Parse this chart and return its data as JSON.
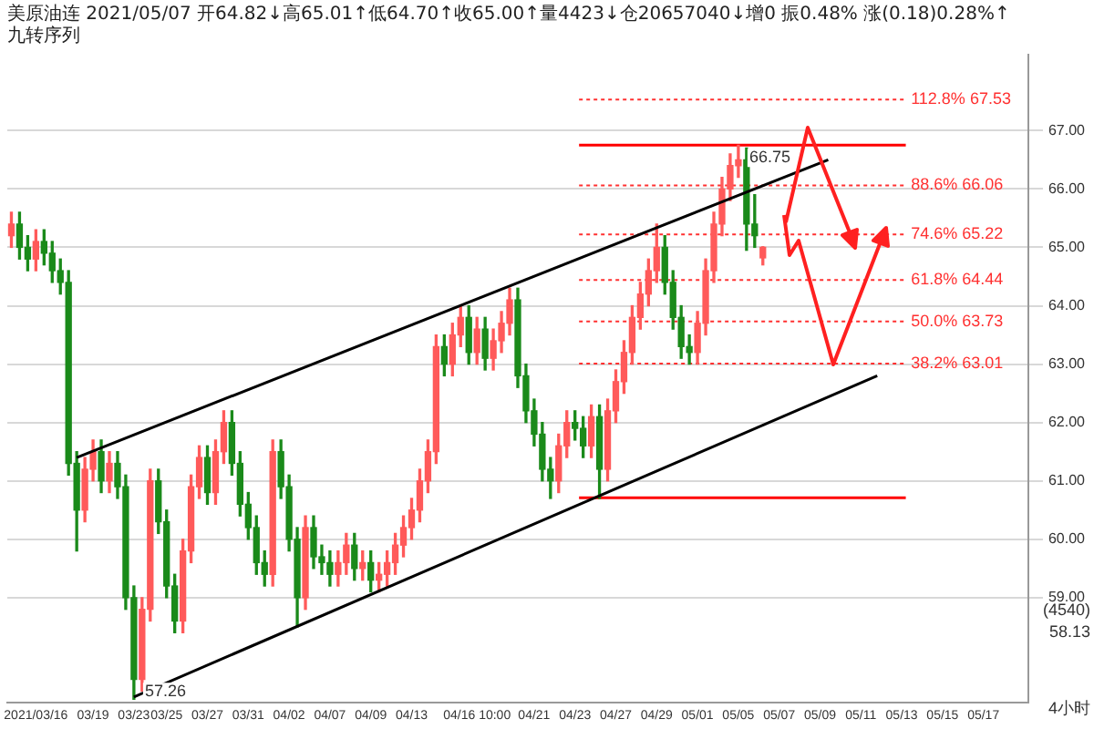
{
  "chart_data": {
    "type": "candlestick",
    "title": "美原油连 2021/05/07 开64.82↓高65.01↑低64.70↑收65.00↑量4423↓仓20657040↓增0 振0.48% 涨(0.18)0.28%↑",
    "subtitle": "九转序列",
    "categories": [
      null,
      null,
      null,
      "2021/03/16",
      null,
      null,
      null,
      null,
      null,
      null,
      "03/19",
      null,
      null,
      null,
      null,
      "03/23",
      null,
      null,
      null,
      "03/25",
      null,
      null,
      null,
      null,
      "03/27",
      null,
      null,
      null,
      null,
      "03/31",
      null,
      null,
      null,
      null,
      "04/02",
      null,
      null,
      null,
      null,
      "04/07",
      null,
      null,
      null,
      null,
      "04/09",
      null,
      null,
      null,
      null,
      "04/13",
      null,
      null,
      null,
      null,
      null,
      null,
      null,
      "04/16 10:00",
      null,
      null,
      null,
      null,
      null,
      null,
      "04/21",
      null,
      null,
      null,
      null,
      "04/23",
      null,
      null,
      null,
      null,
      "04/27",
      null,
      null,
      null,
      null,
      "04/29",
      null,
      null,
      null,
      null,
      "05/01",
      null,
      null,
      null,
      null,
      "05/05",
      null,
      null,
      null,
      null,
      "05/07",
      null,
      null,
      null,
      null,
      "05/09",
      null,
      null,
      null,
      null,
      "05/11",
      null,
      null,
      null,
      null,
      "05/13",
      null,
      null,
      null,
      null,
      "05/15",
      null,
      null,
      null,
      null,
      "05/17",
      null,
      null,
      null,
      null,
      null
    ],
    "ohlc": [
      [
        65.2,
        65.6,
        65.0,
        65.4
      ],
      [
        65.4,
        65.6,
        64.8,
        65.0
      ],
      [
        65.0,
        65.2,
        64.6,
        64.8
      ],
      [
        64.8,
        65.3,
        64.6,
        65.1
      ],
      [
        65.1,
        65.3,
        64.7,
        64.9
      ],
      [
        64.9,
        65.1,
        64.4,
        64.6
      ],
      [
        64.6,
        64.8,
        64.2,
        64.4
      ],
      [
        64.4,
        64.6,
        61.1,
        61.3
      ],
      [
        61.3,
        61.5,
        59.8,
        60.5
      ],
      [
        60.5,
        61.4,
        60.3,
        61.2
      ],
      [
        61.2,
        61.7,
        61.0,
        61.5
      ],
      [
        61.5,
        61.7,
        60.8,
        61.0
      ],
      [
        61.0,
        61.5,
        60.8,
        61.3
      ],
      [
        61.3,
        61.5,
        60.7,
        60.9
      ],
      [
        60.9,
        61.1,
        58.8,
        59.0
      ],
      [
        59.0,
        59.2,
        57.26,
        57.6
      ],
      [
        57.6,
        59.0,
        57.4,
        58.8
      ],
      [
        58.8,
        61.2,
        58.6,
        61.0
      ],
      [
        61.0,
        61.2,
        60.1,
        60.3
      ],
      [
        60.3,
        60.5,
        59.0,
        59.2
      ],
      [
        59.2,
        59.4,
        58.4,
        58.6
      ],
      [
        58.6,
        60.0,
        58.4,
        59.8
      ],
      [
        59.8,
        61.1,
        59.6,
        60.9
      ],
      [
        60.9,
        61.6,
        60.7,
        61.4
      ],
      [
        61.4,
        61.6,
        60.6,
        60.8
      ],
      [
        60.8,
        61.7,
        60.6,
        61.5
      ],
      [
        61.5,
        62.2,
        61.3,
        62.0
      ],
      [
        62.0,
        62.2,
        61.1,
        61.3
      ],
      [
        61.3,
        61.5,
        60.4,
        60.6
      ],
      [
        60.6,
        60.8,
        60.0,
        60.2
      ],
      [
        60.2,
        60.4,
        59.4,
        59.6
      ],
      [
        59.6,
        59.8,
        59.2,
        59.4
      ],
      [
        59.4,
        61.7,
        59.2,
        61.5
      ],
      [
        61.5,
        61.7,
        60.7,
        60.9
      ],
      [
        60.9,
        61.1,
        59.8,
        60.0
      ],
      [
        60.0,
        60.2,
        58.5,
        59.0
      ],
      [
        59.0,
        60.4,
        58.8,
        60.2
      ],
      [
        60.2,
        60.4,
        59.5,
        59.7
      ],
      [
        59.7,
        59.9,
        59.4,
        59.6
      ],
      [
        59.6,
        59.8,
        59.2,
        59.4
      ],
      [
        59.4,
        59.8,
        59.2,
        59.6
      ],
      [
        59.6,
        60.1,
        59.4,
        59.9
      ],
      [
        59.9,
        60.1,
        59.3,
        59.5
      ],
      [
        59.5,
        59.8,
        59.3,
        59.6
      ],
      [
        59.6,
        59.8,
        59.1,
        59.3
      ],
      [
        59.3,
        59.6,
        59.1,
        59.4
      ],
      [
        59.4,
        59.8,
        59.2,
        59.6
      ],
      [
        59.6,
        60.1,
        59.4,
        59.9
      ],
      [
        59.9,
        60.4,
        59.7,
        60.2
      ],
      [
        60.2,
        60.7,
        60.0,
        60.5
      ],
      [
        60.5,
        61.2,
        60.3,
        61.0
      ],
      [
        61.0,
        61.7,
        60.8,
        61.5
      ],
      [
        61.5,
        63.5,
        61.3,
        63.3
      ],
      [
        63.3,
        63.5,
        62.8,
        63.0
      ],
      [
        63.0,
        63.7,
        62.8,
        63.5
      ],
      [
        63.5,
        64.0,
        63.3,
        63.8
      ],
      [
        63.8,
        64.0,
        63.0,
        63.2
      ],
      [
        63.2,
        63.8,
        63.0,
        63.6
      ],
      [
        63.6,
        63.8,
        62.9,
        63.1
      ],
      [
        63.1,
        63.6,
        62.9,
        63.4
      ],
      [
        63.4,
        63.9,
        63.2,
        63.7
      ],
      [
        63.7,
        64.3,
        63.5,
        64.1
      ],
      [
        64.1,
        64.3,
        62.6,
        62.8
      ],
      [
        62.8,
        63.0,
        62.0,
        62.2
      ],
      [
        62.2,
        62.4,
        61.6,
        61.8
      ],
      [
        61.8,
        62.0,
        61.0,
        61.2
      ],
      [
        61.2,
        61.4,
        60.7,
        61.0
      ],
      [
        61.0,
        61.8,
        60.8,
        61.6
      ],
      [
        61.6,
        62.2,
        61.4,
        62.0
      ],
      [
        62.0,
        62.2,
        61.7,
        61.9
      ],
      [
        61.9,
        62.1,
        61.4,
        61.6
      ],
      [
        61.6,
        62.3,
        61.4,
        62.1
      ],
      [
        62.1,
        62.3,
        60.7,
        61.2
      ],
      [
        61.2,
        62.4,
        61.0,
        62.2
      ],
      [
        62.2,
        62.9,
        62.0,
        62.7
      ],
      [
        62.7,
        63.4,
        62.5,
        63.2
      ],
      [
        63.2,
        64.0,
        63.0,
        63.8
      ],
      [
        63.8,
        64.4,
        63.6,
        64.2
      ],
      [
        64.2,
        64.8,
        64.0,
        64.6
      ],
      [
        64.6,
        65.4,
        64.4,
        65.0
      ],
      [
        65.0,
        65.2,
        64.2,
        64.4
      ],
      [
        64.4,
        64.6,
        63.6,
        63.8
      ],
      [
        63.8,
        64.0,
        63.1,
        63.3
      ],
      [
        63.3,
        63.5,
        63.0,
        63.2
      ],
      [
        63.2,
        63.9,
        63.0,
        63.7
      ],
      [
        63.7,
        64.8,
        63.5,
        64.6
      ],
      [
        64.6,
        65.6,
        64.4,
        65.4
      ],
      [
        65.4,
        66.2,
        65.2,
        66.0
      ],
      [
        66.0,
        66.6,
        65.8,
        66.4
      ],
      [
        66.4,
        66.75,
        66.2,
        66.5
      ],
      [
        66.5,
        66.7,
        64.95,
        65.4
      ],
      [
        65.4,
        65.9,
        65.0,
        65.2
      ],
      [
        64.82,
        65.01,
        64.7,
        65.0
      ],
      null,
      null,
      null,
      null,
      null,
      null,
      null,
      null,
      null,
      null,
      null,
      null,
      null,
      null,
      null,
      null,
      null,
      null,
      null,
      null,
      null,
      null,
      null,
      null,
      null,
      null,
      null,
      null,
      null,
      null,
      null,
      null
    ],
    "series": [
      {
        "type": "line",
        "color": "#000000",
        "values": [
          null,
          null,
          null,
          null,
          null,
          null,
          null,
          null,
          61.4,
          null,
          null,
          null,
          null,
          null,
          null,
          null,
          null,
          null,
          null,
          null,
          null,
          null,
          null,
          null,
          null,
          null,
          null,
          null,
          null,
          null,
          null,
          null,
          null,
          null,
          null,
          null,
          null,
          null,
          null,
          null,
          null,
          null,
          null,
          null,
          null,
          null,
          null,
          null,
          null,
          null,
          null,
          null,
          null,
          null,
          null,
          null,
          null,
          null,
          null,
          null,
          null,
          null,
          null,
          null,
          null,
          null,
          null,
          null,
          null,
          null,
          null,
          null,
          null,
          null,
          null,
          null,
          null,
          null,
          null,
          null,
          null,
          null,
          null,
          null,
          null,
          null,
          null,
          null,
          null,
          null,
          null,
          null,
          null,
          null,
          null,
          null,
          null,
          null,
          null,
          null,
          66.5,
          null,
          null,
          null,
          null,
          null,
          null,
          null,
          null,
          null,
          null,
          null,
          null,
          null,
          null,
          null,
          null,
          null,
          null,
          null,
          null,
          null,
          null,
          null,
          null
        ]
      },
      {
        "type": "line",
        "color": "#000000",
        "values": [
          null,
          null,
          null,
          null,
          null,
          null,
          null,
          null,
          null,
          null,
          null,
          null,
          null,
          null,
          null,
          57.3,
          null,
          null,
          null,
          null,
          null,
          null,
          null,
          null,
          null,
          null,
          null,
          null,
          null,
          null,
          null,
          null,
          null,
          null,
          null,
          null,
          null,
          null,
          null,
          null,
          null,
          null,
          null,
          null,
          null,
          null,
          null,
          null,
          null,
          null,
          null,
          null,
          null,
          null,
          null,
          null,
          null,
          null,
          null,
          null,
          null,
          null,
          null,
          null,
          null,
          null,
          null,
          null,
          null,
          null,
          null,
          null,
          null,
          null,
          null,
          null,
          null,
          null,
          null,
          null,
          null,
          null,
          null,
          null,
          null,
          null,
          null,
          null,
          null,
          null,
          null,
          null,
          null,
          null,
          null,
          null,
          null,
          null,
          null,
          null,
          null,
          null,
          null,
          null,
          null,
          null,
          62.8,
          null,
          null,
          null,
          null,
          null,
          null,
          null,
          null,
          null,
          null,
          null,
          null,
          null,
          null,
          null,
          null,
          null,
          null
        ]
      }
    ],
    "ylim": [
      57.2,
      68.3
    ],
    "yticks": [
      {
        "value": 59,
        "label": "59.00"
      },
      {
        "value": 60,
        "label": "60.00"
      },
      {
        "value": 61,
        "label": "61.00"
      },
      {
        "value": 62,
        "label": "62.00"
      },
      {
        "value": 63,
        "label": "63.00"
      },
      {
        "value": 64,
        "label": "64.00"
      },
      {
        "value": 65,
        "label": "65.00"
      },
      {
        "value": 66,
        "label": "66.00"
      },
      {
        "value": 67,
        "label": "67.00"
      }
    ],
    "grid": "y",
    "ref_lines": [
      {
        "axis": "y",
        "value": 67.53,
        "label": "112.8% 67.53",
        "color": "#ff3030",
        "line_style": "dotted"
      },
      {
        "axis": "y",
        "value": 66.75,
        "color": "#ff0000",
        "line_style": "solid"
      },
      {
        "axis": "y",
        "value": 66.06,
        "label": "88.6% 66.06",
        "color": "#ff3030",
        "line_style": "dotted"
      },
      {
        "axis": "y",
        "value": 65.22,
        "label": "74.6% 65.22",
        "color": "#ff3030",
        "line_style": "dotted"
      },
      {
        "axis": "y",
        "value": 64.44,
        "label": "61.8% 64.44",
        "color": "#ff3030",
        "line_style": "dotted"
      },
      {
        "axis": "y",
        "value": 63.73,
        "label": "50.0% 63.73",
        "color": "#ff3030",
        "line_style": "dotted"
      },
      {
        "axis": "y",
        "value": 63.01,
        "label": "38.2% 63.01",
        "color": "#ff3030",
        "line_style": "dotted"
      },
      {
        "axis": "y",
        "value": 60.71,
        "color": "#ff0000",
        "line_style": "solid"
      }
    ],
    "annotations": [
      {
        "text": "66.75",
        "y": 66.75
      },
      "57.26",
      "(4540)",
      "58.13",
      "4小时"
    ]
  }
}
